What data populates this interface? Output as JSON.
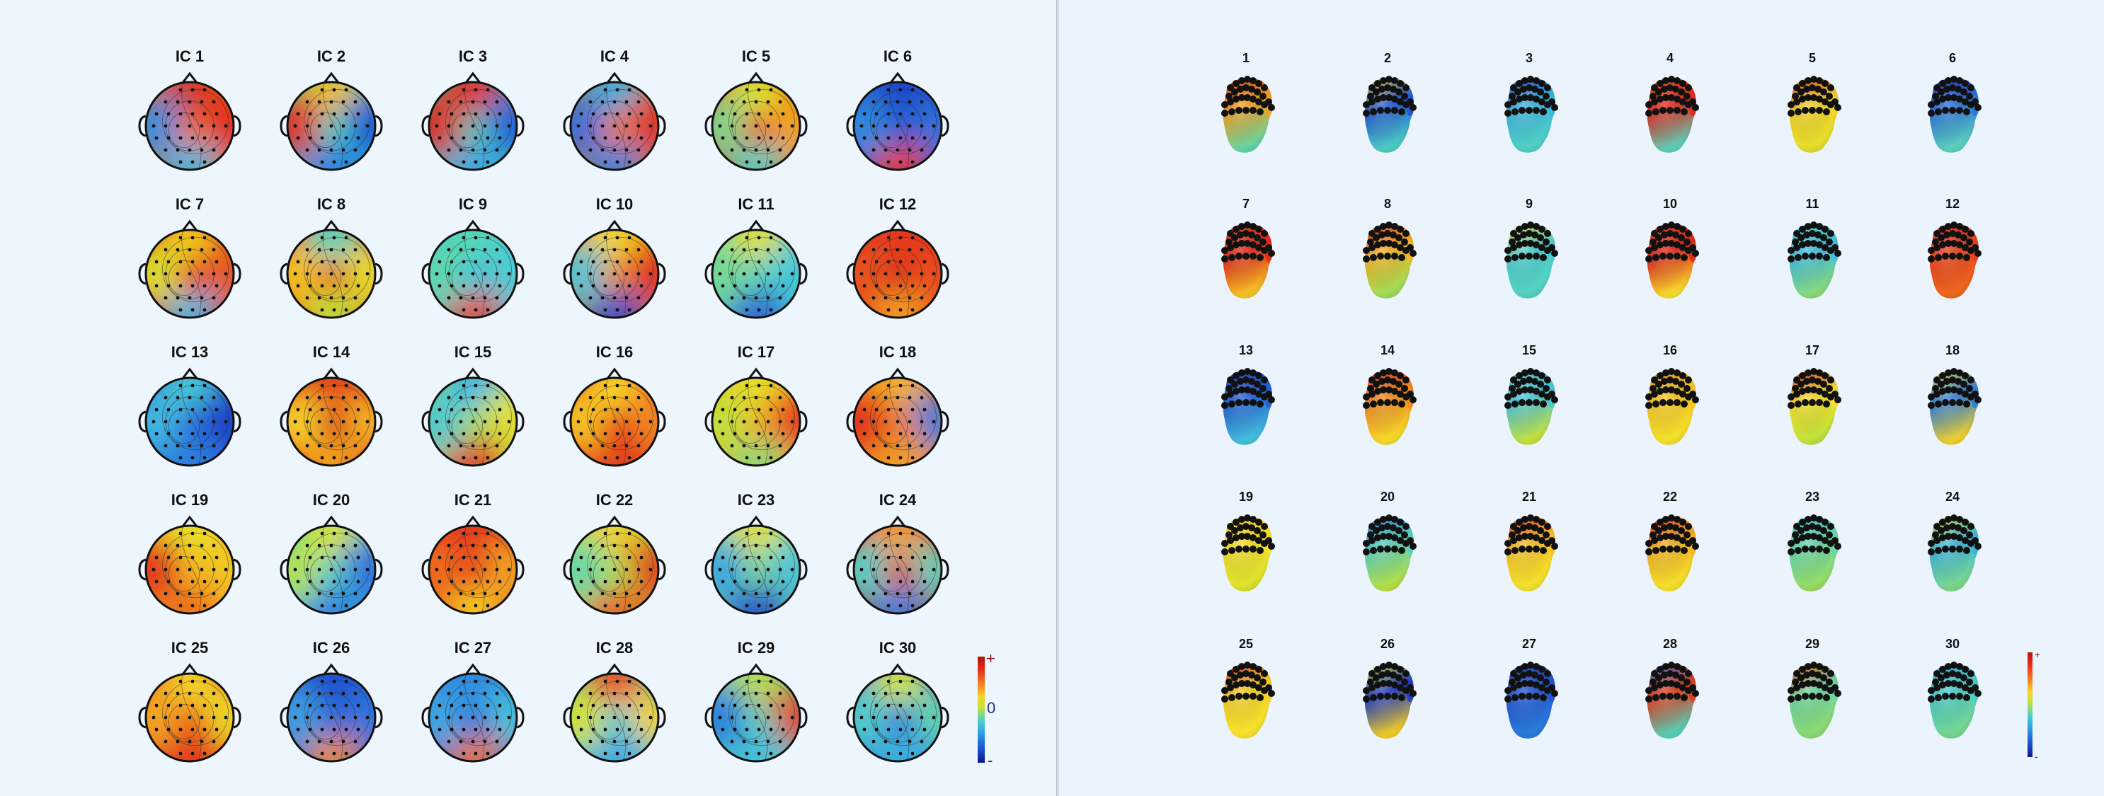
{
  "topographic_maps": {
    "items": [
      {
        "label": "IC 1",
        "top": "#d23a1e",
        "right": "#e3261b",
        "bottom": "#38b6e0",
        "left": "#2f8de0",
        "center": "#f36d1d"
      },
      {
        "label": "IC 2",
        "top": "#f2c21c",
        "right": "#1d4fd0",
        "bottom": "#1e7ee2",
        "left": "#e12a1a",
        "center": "#47d2c4"
      },
      {
        "label": "IC 3",
        "top": "#e3331c",
        "right": "#1f57d6",
        "bottom": "#3aa5e0",
        "left": "#d92c1a",
        "center": "#4cc9b9"
      },
      {
        "label": "IC 4",
        "top": "#34b0e0",
        "right": "#dd2d1a",
        "bottom": "#2782de",
        "left": "#2e6fdc",
        "center": "#f37b1e"
      },
      {
        "label": "IC 5",
        "top": "#d9e52a",
        "right": "#f2a51f",
        "bottom": "#46d0c1",
        "left": "#7cd58b",
        "center": "#ea571d"
      },
      {
        "label": "IC 6",
        "top": "#1c3fc5",
        "right": "#2b70da",
        "bottom": "#e83a1c",
        "left": "#2f8ae0",
        "center": "#2054d2"
      },
      {
        "label": "IC 7",
        "top": "#f1c91d",
        "right": "#e55a1e",
        "bottom": "#3ab6e3",
        "left": "#d8e02a",
        "center": "#e8331b"
      },
      {
        "label": "IC 8",
        "top": "#48d4c2",
        "right": "#e4df2b",
        "bottom": "#b9e33a",
        "left": "#f2c11d",
        "center": "#e65a1e"
      },
      {
        "label": "IC 9",
        "top": "#58d6b5",
        "right": "#4ecdd0",
        "bottom": "#e3402b",
        "left": "#61d8ab",
        "center": "#3dbfe0"
      },
      {
        "label": "IC 10",
        "top": "#f4d624",
        "right": "#e02a1b",
        "bottom": "#2044cc",
        "left": "#4bc4d8",
        "center": "#ef8a1f"
      },
      {
        "label": "IC 11",
        "top": "#e2e12c",
        "right": "#43c8d8",
        "bottom": "#2658d6",
        "left": "#74d893",
        "center": "#58d1bf"
      },
      {
        "label": "IC 12",
        "top": "#e8381c",
        "right": "#ec4b1c",
        "bottom": "#f6a221",
        "left": "#e8521d",
        "center": "#d42b1a"
      },
      {
        "label": "IC 13",
        "top": "#47c9d4",
        "right": "#1d3dc6",
        "bottom": "#2b7fde",
        "left": "#41b9e0",
        "center": "#2a66da"
      },
      {
        "label": "IC 14",
        "top": "#e3381b",
        "right": "#f4b521",
        "bottom": "#f2a41f",
        "left": "#f7d127",
        "center": "#d8251a"
      },
      {
        "label": "IC 15",
        "top": "#3fb6e2",
        "right": "#e3e02b",
        "bottom": "#e12d1b",
        "left": "#4cc9cf",
        "center": "#a6de58"
      },
      {
        "label": "IC 16",
        "top": "#f7d727",
        "right": "#f08b20",
        "bottom": "#e33e1d",
        "left": "#f4c424",
        "center": "#e7331c"
      },
      {
        "label": "IC 17",
        "top": "#e7e12b",
        "right": "#e52f1b",
        "bottom": "#8bd878",
        "left": "#bfe13a",
        "center": "#f1ac22"
      },
      {
        "label": "IC 18",
        "top": "#f5b322",
        "right": "#2d7edc",
        "bottom": "#f0a020",
        "left": "#e1331b",
        "center": "#f07e1f"
      },
      {
        "label": "IC 19",
        "top": "#e8e22a",
        "right": "#f2c724",
        "bottom": "#ee6b1e",
        "left": "#e12d1b",
        "center": "#f3b322"
      },
      {
        "label": "IC 20",
        "top": "#d7e52c",
        "right": "#2d69dc",
        "bottom": "#2b7ede",
        "left": "#b4e34d",
        "center": "#4ac9d3"
      },
      {
        "label": "IC 21",
        "top": "#e2301b",
        "right": "#f2a321",
        "bottom": "#f5ce24",
        "left": "#ef6a1e",
        "center": "#e4381c"
      },
      {
        "label": "IC 22",
        "top": "#f0d226",
        "right": "#e2321b",
        "bottom": "#e9541d",
        "left": "#67d7a9",
        "center": "#a9e04a"
      },
      {
        "label": "IC 23",
        "top": "#e2e22c",
        "right": "#46c3dc",
        "bottom": "#1e3fc8",
        "left": "#3aa8e0",
        "center": "#76d895"
      },
      {
        "label": "IC 24",
        "top": "#f39a20",
        "right": "#5ad3bb",
        "bottom": "#2a7ee0",
        "left": "#4dd0c8",
        "center": "#e3331b"
      },
      {
        "label": "IC 25",
        "top": "#f4d426",
        "right": "#ecdf2b",
        "bottom": "#e0301b",
        "left": "#f2a721",
        "center": "#e84e1d"
      },
      {
        "label": "IC 26",
        "top": "#1e48ce",
        "right": "#2c74de",
        "bottom": "#ec8a20",
        "left": "#3c9fe0",
        "center": "#2c5fd8"
      },
      {
        "label": "IC 27",
        "top": "#2f8be0",
        "right": "#45c3db",
        "bottom": "#ea6f1e",
        "left": "#3ca6e2",
        "center": "#2f70dc"
      },
      {
        "label": "IC 28",
        "top": "#eb3d1d",
        "right": "#f6d025",
        "bottom": "#3aa6e0",
        "left": "#d8e22c",
        "center": "#44c8d6"
      },
      {
        "label": "IC 29",
        "top": "#b9e247",
        "right": "#e13a1c",
        "bottom": "#41bddc",
        "left": "#2c7ede",
        "center": "#5ad1bd"
      },
      {
        "label": "IC 30",
        "top": "#d5e42e",
        "right": "#65d7ad",
        "bottom": "#3ab4e0",
        "left": "#51cdc8",
        "center": "#2f70dc"
      }
    ]
  },
  "head_models": {
    "items": [
      {
        "label": "1",
        "top": "#e43a1c",
        "face": "#f3a322",
        "chin": "#62d7a8"
      },
      {
        "label": "2",
        "top": "#e6d12a",
        "face": "#2156d6",
        "chin": "#4fd1c4"
      },
      {
        "label": "3",
        "top": "#1d46ce",
        "face": "#3cb8e0",
        "chin": "#52d2c4"
      },
      {
        "label": "4",
        "top": "#eb5a1e",
        "face": "#e3291b",
        "chin": "#5bd3bc"
      },
      {
        "label": "5",
        "top": "#ec4a1c",
        "face": "#f5d528",
        "chin": "#e6e02b"
      },
      {
        "label": "6",
        "top": "#1c3bc4",
        "face": "#2b72dc",
        "chin": "#5ed4bb"
      },
      {
        "label": "7",
        "top": "#e6461d",
        "face": "#e3281a",
        "chin": "#f6c726"
      },
      {
        "label": "8",
        "top": "#e3331b",
        "face": "#f4b623",
        "chin": "#9edf5c"
      },
      {
        "label": "9",
        "top": "#e1e12c",
        "face": "#4ccfd0",
        "chin": "#55d4c1"
      },
      {
        "label": "10",
        "top": "#e8451d",
        "face": "#e0261a",
        "chin": "#f9e02d"
      },
      {
        "label": "11",
        "top": "#57d3b9",
        "face": "#40bfe0",
        "chin": "#8bdb7a"
      },
      {
        "label": "12",
        "top": "#e02b1a",
        "face": "#ea421c",
        "chin": "#f06a1e"
      },
      {
        "label": "13",
        "top": "#1e44cc",
        "face": "#2460d6",
        "chin": "#46c3dc"
      },
      {
        "label": "14",
        "top": "#e7391c",
        "face": "#f18a20",
        "chin": "#f7dd2a"
      },
      {
        "label": "15",
        "top": "#50d0c8",
        "face": "#4bc6d8",
        "chin": "#c9e23a"
      },
      {
        "label": "16",
        "top": "#f19a20",
        "face": "#f6c725",
        "chin": "#f6e22c"
      },
      {
        "label": "17",
        "top": "#e2301b",
        "face": "#f7e12d",
        "chin": "#bfe33c"
      },
      {
        "label": "18",
        "top": "#ece02c",
        "face": "#2f7fdc",
        "chin": "#f6d229"
      },
      {
        "label": "19",
        "top": "#f3cf27",
        "face": "#f6df2b",
        "chin": "#dde42d"
      },
      {
        "label": "20",
        "top": "#2b77de",
        "face": "#5ad3bc",
        "chin": "#b9e043"
      },
      {
        "label": "21",
        "top": "#e3301b",
        "face": "#f7c426",
        "chin": "#f5e42d"
      },
      {
        "label": "22",
        "top": "#e2311b",
        "face": "#f4b422",
        "chin": "#f6e22c"
      },
      {
        "label": "23",
        "top": "#44c5dc",
        "face": "#66d8ac",
        "chin": "#9ade62"
      },
      {
        "label": "24",
        "top": "#e5e12b",
        "face": "#3bb7e0",
        "chin": "#7ed98a"
      },
      {
        "label": "25",
        "top": "#e3331b",
        "face": "#f4d227",
        "chin": "#f8e42d"
      },
      {
        "label": "26",
        "top": "#d6e22c",
        "face": "#1d3ac4",
        "chin": "#f4cf27"
      },
      {
        "label": "27",
        "top": "#1e3fc8",
        "face": "#2456d4",
        "chin": "#2c7edc"
      },
      {
        "label": "28",
        "top": "#2c74dc",
        "face": "#e53a1c",
        "chin": "#55d3bc"
      },
      {
        "label": "29",
        "top": "#ee5a1d",
        "face": "#6dd8a0",
        "chin": "#8fdb72"
      },
      {
        "label": "30",
        "top": "#38b6e0",
        "face": "#4ccdc8",
        "chin": "#78d890"
      }
    ]
  },
  "colorbar_2d": {
    "plus": "+",
    "zero": "0",
    "minus": "-"
  },
  "colorbar_3d": {
    "plus": "+",
    "minus": "-"
  },
  "colors": {
    "background": "#edf5fd",
    "text": "#111111"
  }
}
